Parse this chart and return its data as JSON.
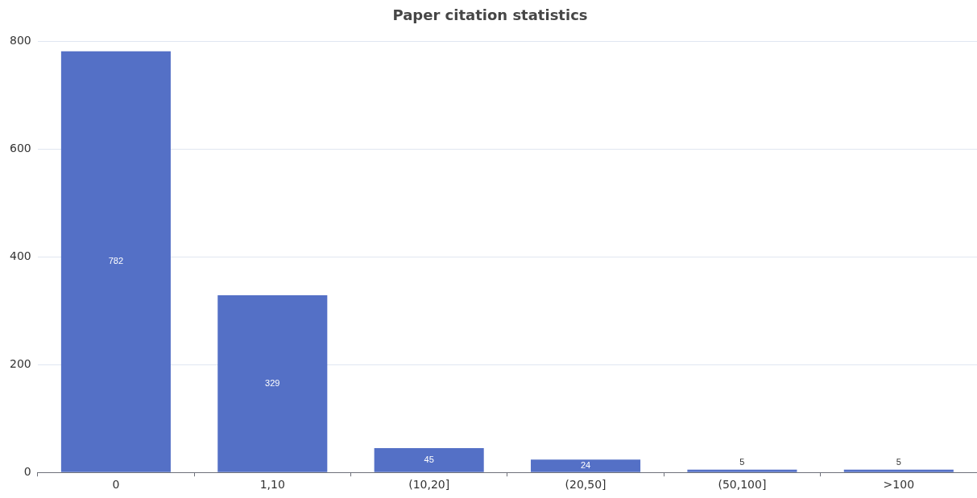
{
  "chart_data": {
    "type": "bar",
    "title": "Paper citation statistics",
    "categories": [
      "0",
      "1,10",
      "(10,20]",
      "(20,50]",
      "(50,100]",
      ">100"
    ],
    "values": [
      782,
      329,
      45,
      24,
      5,
      5
    ],
    "color": "#5470c6",
    "ylim": [
      0,
      800
    ],
    "yticks": [
      0,
      200,
      400,
      600,
      800
    ],
    "grid": "y",
    "data_labels": true
  }
}
